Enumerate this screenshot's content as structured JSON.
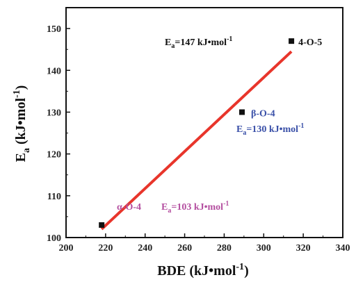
{
  "chart_data": {
    "type": "scatter",
    "xlabel": "BDE (kJ•mol",
    "xlabel_sup": "-1",
    "xlabel_tail": ")",
    "ylabel": "E",
    "ylabel_sub": "a",
    "ylabel_tail": " (kJ•mol",
    "ylabel_sup": "-1",
    "ylabel_close": ")",
    "xlim": [
      200,
      340
    ],
    "ylim": [
      100,
      155
    ],
    "xticks": [
      200,
      220,
      240,
      260,
      280,
      300,
      320,
      340
    ],
    "yticks": [
      100,
      110,
      120,
      130,
      140,
      150
    ],
    "grid": false,
    "points": [
      {
        "x": 218,
        "y": 103,
        "label": "α-O-4"
      },
      {
        "x": 289,
        "y": 130,
        "label": "β-O-4"
      },
      {
        "x": 314,
        "y": 147,
        "label": "4-O-5"
      }
    ],
    "fit_line": {
      "x": [
        218,
        314
      ],
      "y": [
        102,
        144.5
      ],
      "color": "#e8352b"
    },
    "annotations": [
      {
        "id": "ea-4o5",
        "prefix": "E",
        "sub": "a",
        "body": "=147 kJ•mol",
        "sup": "-1",
        "color": "#111111"
      },
      {
        "id": "ea-bo4",
        "prefix": "E",
        "sub": "a",
        "body": "=130 kJ•mol",
        "sup": "-1",
        "color": "#3a50a8"
      },
      {
        "id": "ea-ao4",
        "prefix": "E",
        "sub": "a",
        "body": "=103 kJ•mol",
        "sup": "-1",
        "color": "#b44fa0"
      }
    ],
    "label_colors": {
      "α-O-4": "#b44fa0",
      "β-O-4": "#3a50a8",
      "4-O-5": "#111111"
    }
  }
}
